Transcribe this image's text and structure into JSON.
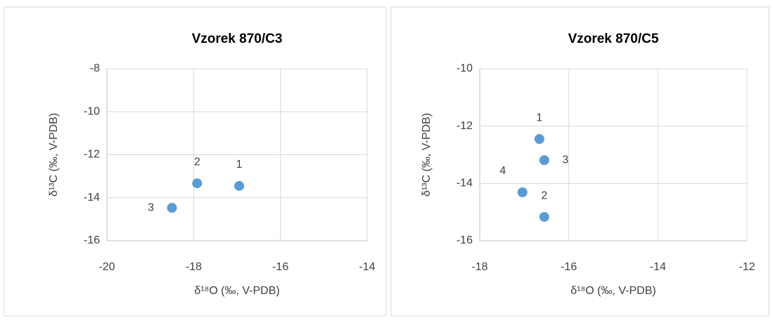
{
  "chart_data": [
    {
      "type": "scatter",
      "title": "Vzorek 870/C3",
      "xlabel": "δ¹⁸O (‰, V-PDB)",
      "ylabel": "δ¹³C (‰, V-PDB)",
      "xlim": [
        -20,
        -14
      ],
      "xticks": [
        -20,
        -18,
        -16,
        -14
      ],
      "ylim": [
        -16,
        -8
      ],
      "yticks": [
        -8,
        -10,
        -12,
        -14,
        -16
      ],
      "grid": true,
      "series": [
        {
          "color": "#5b9bd5",
          "x": [
            -16.95,
            -17.92,
            -18.5
          ],
          "values": [
            -13.45,
            -13.33,
            -14.47
          ],
          "labels": [
            "1",
            "2",
            "3"
          ]
        }
      ]
    },
    {
      "type": "scatter",
      "title": "Vzorek 870/C5",
      "xlabel": "δ¹⁸O (‰, V-PDB)",
      "ylabel": "δ¹³C (‰, V-PDB)",
      "xlim": [
        -18,
        -12
      ],
      "xticks": [
        -18,
        -16,
        -14,
        -12
      ],
      "ylim": [
        -16,
        -10
      ],
      "yticks": [
        -10,
        -12,
        -14,
        -16
      ],
      "grid": true,
      "series": [
        {
          "color": "#5b9bd5",
          "x": [
            -16.66,
            -16.55,
            -16.55,
            -17.04
          ],
          "values": [
            -12.45,
            -15.17,
            -13.19,
            -14.31
          ],
          "labels": [
            "1",
            "2",
            "3",
            "4"
          ]
        }
      ]
    }
  ]
}
